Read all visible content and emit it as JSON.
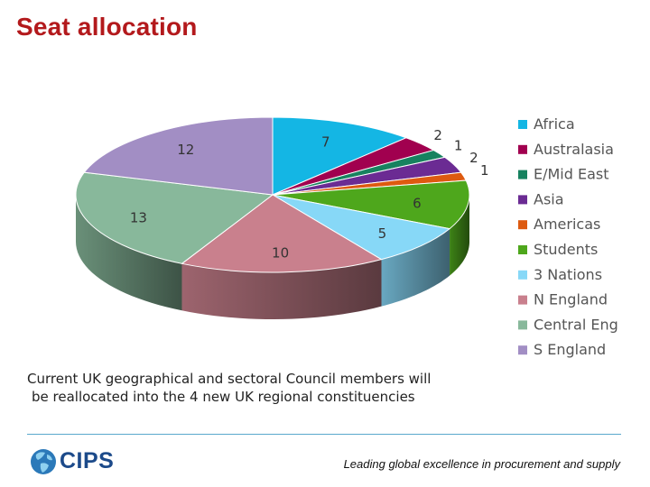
{
  "slide": {
    "title": "Seat allocation",
    "caption_line1": "Current UK geographical and sectoral Council members will",
    "caption_line2": "be reallocated into the 4 new UK regional constituencies",
    "logo_text": "CIPS",
    "tagline": "Leading global excellence in procurement and supply"
  },
  "colors": {
    "title": "#b3191c",
    "divider": "#5aa8cc",
    "logo": "#1c4a8a"
  },
  "chart_data": {
    "type": "pie",
    "style": "3d",
    "legend_position": "right",
    "slices": [
      {
        "label": "Africa",
        "value": 7,
        "color": "#14b6e4"
      },
      {
        "label": "Australasia",
        "value": 2,
        "color": "#a1004f"
      },
      {
        "label": "E/Mid East",
        "value": 1,
        "color": "#17825f"
      },
      {
        "label": "Asia",
        "value": 2,
        "color": "#6b2b93"
      },
      {
        "label": "Americas",
        "value": 1,
        "color": "#dd5a10"
      },
      {
        "label": "Students",
        "value": 6,
        "color": "#4ea71c"
      },
      {
        "label": "3 Nations",
        "value": 5,
        "color": "#87d8f7"
      },
      {
        "label": "N England",
        "value": 10,
        "color": "#c9808d"
      },
      {
        "label": "Central Eng",
        "value": 13,
        "color": "#88b89b"
      },
      {
        "label": "S England",
        "value": 12,
        "color": "#a28ec4"
      }
    ]
  }
}
